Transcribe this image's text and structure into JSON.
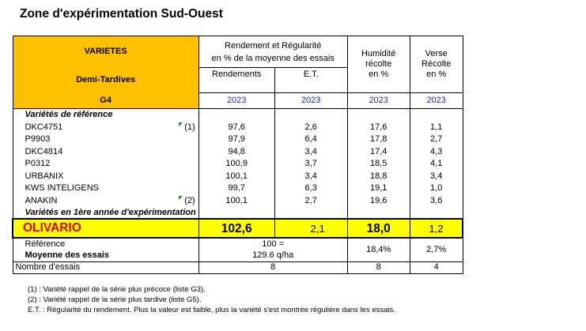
{
  "title": "Zone d'expérimentation Sud-Ouest",
  "header": {
    "varietes": "VARIETES",
    "group": "Demi-Tardives",
    "code": "G4",
    "rend_reg_line1": "Rendement et Régularité",
    "rend_reg_line2": "en % de la moyenne des essais",
    "rendements": "Rendements",
    "et": "E.T.",
    "humidite_l1": "Humidité",
    "humidite_l2": "récolte",
    "humidite_l3": "en %",
    "verse_l1": "Verse",
    "verse_l2": "Récolte",
    "verse_l3": "en %",
    "year": "2023"
  },
  "section_reference": "Variétés de référence",
  "rows": [
    {
      "name": "DKC4751",
      "note": "(1)",
      "rend": "97,6",
      "et": "2,6",
      "hum": "17,6",
      "verse": "1,1"
    },
    {
      "name": "P9903",
      "note": "",
      "rend": "97,9",
      "et": "6,4",
      "hum": "17,8",
      "verse": "2,7"
    },
    {
      "name": "DKC4814",
      "note": "",
      "rend": "94,8",
      "et": "3,4",
      "hum": "17,4",
      "verse": "4,3"
    },
    {
      "name": "P0312",
      "note": "",
      "rend": "100,9",
      "et": "3,7",
      "hum": "18,5",
      "verse": "4,1"
    },
    {
      "name": "URBANIX",
      "note": "",
      "rend": "100,1",
      "et": "3,4",
      "hum": "18,8",
      "verse": "3,4"
    },
    {
      "name": "KWS INTELIGENS",
      "note": "",
      "rend": "99,7",
      "et": "6,3",
      "hum": "19,1",
      "verse": "1,0"
    },
    {
      "name": "ANAKIN",
      "note": "(2)",
      "rend": "100,1",
      "et": "2,7",
      "hum": "19,6",
      "verse": "3,6"
    }
  ],
  "section_first_year": "Variétés en 1ère année d'expérimentation",
  "highlight": {
    "name": "OLIVARIO",
    "rend": "102,6",
    "et": "2,1",
    "hum": "18,0",
    "verse": "1,2"
  },
  "reference": {
    "label1": "Référence",
    "label2": "Moyenne des essais",
    "val1": "100 =",
    "val2": "129.6 q/ha",
    "hum": "18,4%",
    "verse": "2,7%"
  },
  "nb_essais": {
    "label": "Nombre d'essais",
    "rend": "8",
    "hum": "8",
    "verse": "4"
  },
  "notes": [
    "(1) : Variété rappel de la série plus précoce (liste G3).",
    "(2) : Variété rappel de la série plus tardive (liste G5).",
    "E.T. : Régularité du rendement. Plus la valeur est faible, plus la variété s'est montrée régulière dans les essais."
  ],
  "colors": {
    "header_bg": "#FFC000",
    "highlight_bg": "#FFFF00",
    "highlight_name": "#E00000",
    "year": "#1F2A9E"
  }
}
